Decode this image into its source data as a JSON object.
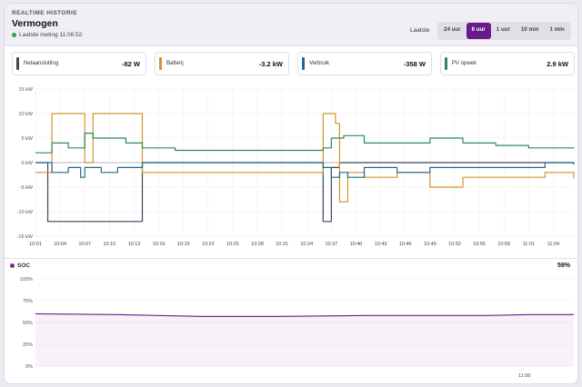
{
  "header": {
    "eyebrow": "REALTIME HISTORIE",
    "title": "Vermogen",
    "status": "Laatste meting 11:06:52"
  },
  "period": {
    "label": "Laatste",
    "options": [
      "24 uur",
      "6 uur",
      "1 uur",
      "10 min",
      "1 min"
    ],
    "selected": "6 uur"
  },
  "metrics": [
    {
      "label": "Netaansluiting",
      "value": "-82 W",
      "color": "#3d4657"
    },
    {
      "label": "Batterij",
      "value": "-3.2 kW",
      "color": "#d4942a"
    },
    {
      "label": "Verbruik",
      "value": "-358 W",
      "color": "#1f6b8f"
    },
    {
      "label": "PV opwek",
      "value": "2.9 kW",
      "color": "#2e8b57"
    }
  ],
  "chart_data": [
    {
      "type": "line",
      "ylim": [
        -15,
        15
      ],
      "y_ticks": [
        "15 kW",
        "10 kW",
        "5 kW",
        "0 kW",
        "-5 kW",
        "-10 kW",
        "-15 kW"
      ],
      "x_ticks": [
        "10:01",
        "10:04",
        "10:07",
        "10:10",
        "10:13",
        "10:16",
        "10:19",
        "10:22",
        "10:25",
        "10:28",
        "10:31",
        "10:34",
        "10:37",
        "10:40",
        "10:43",
        "10:46",
        "10:49",
        "10:52",
        "10:55",
        "10:58",
        "11:01",
        "11:04"
      ],
      "grid": true,
      "series": [
        {
          "name": "Netaansluiting",
          "color": "#3d4657",
          "x": [
            0,
            1.2,
            1.5,
            5,
            8,
            11,
            12.7,
            13,
            17,
            22,
            25,
            30,
            34.5,
            35,
            36,
            37,
            38.5,
            42,
            47,
            52,
            57,
            62.5,
            65.5
          ],
          "y": [
            0,
            0,
            -12,
            -12,
            -12,
            -12,
            -12,
            0,
            0,
            0,
            0,
            0,
            0,
            -12,
            -1,
            0,
            0,
            0,
            0,
            0,
            0,
            0,
            0
          ]
        },
        {
          "name": "Batterij",
          "color": "#d4942a",
          "x": [
            0,
            1.5,
            2,
            4,
            6,
            7,
            9,
            11,
            12.7,
            13,
            17,
            22,
            26,
            30,
            34,
            35,
            36.5,
            37,
            38,
            40,
            44,
            48,
            52,
            56,
            60,
            62,
            65.5
          ],
          "y": [
            -2,
            -2,
            10,
            10,
            0,
            10,
            10,
            10,
            10,
            -2,
            -2,
            -2,
            -2,
            -2,
            -2,
            10,
            8,
            -8,
            -2,
            -3,
            -2,
            -5,
            -3,
            -3,
            -3,
            -2,
            -3.2
          ]
        },
        {
          "name": "Verbruik",
          "color": "#1f6b8f",
          "x": [
            0,
            1.5,
            2,
            4,
            5.5,
            6,
            8,
            9.5,
            10,
            12.7,
            13,
            17,
            22,
            26,
            30,
            34,
            35,
            36,
            37,
            38,
            40,
            44,
            48,
            52,
            56,
            60,
            62,
            65.5
          ],
          "y": [
            0,
            0,
            -2,
            -1,
            -3,
            -1,
            -2,
            -2,
            -1,
            -1,
            0,
            0,
            0,
            0,
            0,
            0,
            -1,
            -3,
            -2,
            -3,
            -1,
            -2,
            -1,
            -1,
            -1,
            -1,
            0,
            -0.4
          ]
        },
        {
          "name": "PV opwek",
          "color": "#2e8b57",
          "x": [
            0,
            1.5,
            2,
            4,
            6,
            7,
            9,
            11,
            12.7,
            13,
            17,
            22,
            26,
            30,
            34,
            35,
            36,
            37.5,
            40,
            44,
            48,
            52,
            56,
            60,
            62,
            65.5
          ],
          "y": [
            2,
            2,
            4,
            3,
            6,
            5,
            5,
            4,
            4,
            3,
            2.5,
            2.5,
            2.5,
            2.5,
            2.5,
            3,
            5,
            5.5,
            4,
            4,
            5,
            4,
            3.5,
            3,
            3,
            2.9
          ]
        }
      ]
    },
    {
      "type": "area",
      "title": "SOC",
      "current": "59%",
      "ylim": [
        0,
        100
      ],
      "y_ticks": [
        "100%",
        "75%",
        "50%",
        "25%",
        "0%"
      ],
      "x_ticks": [
        "11:00"
      ],
      "x": [
        0,
        10,
        20,
        30,
        40,
        50,
        55,
        60,
        65.5
      ],
      "values": [
        60,
        59,
        57,
        57,
        58,
        58,
        58,
        59,
        59
      ],
      "color": "#6a1b8a"
    }
  ]
}
